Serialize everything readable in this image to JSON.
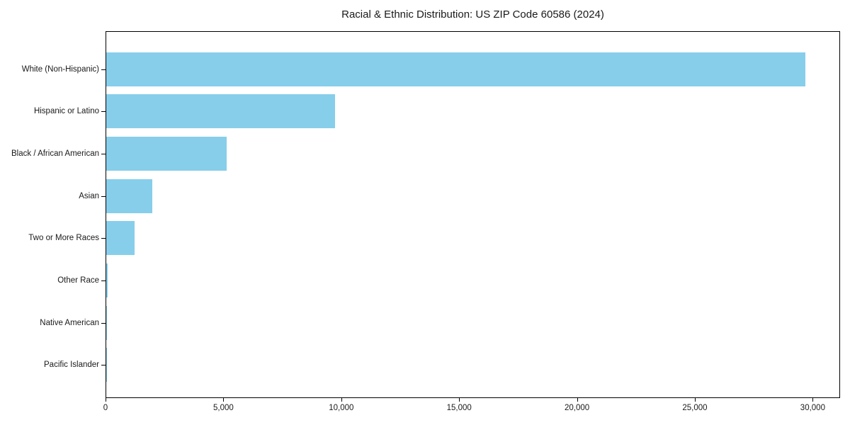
{
  "figure": {
    "background_color": "#ffffff",
    "axis_color": "#000000",
    "text_color": "#1a1a1a"
  },
  "chart_data": {
    "type": "bar",
    "orientation": "horizontal",
    "title": "Racial & Ethnic Distribution: US ZIP Code 60586 (2024)",
    "categories": [
      "White (Non-Hispanic)",
      "Hispanic or Latino",
      "Black / African American",
      "Asian",
      "Two or More Races",
      "Other Race",
      "Native American",
      "Pacific Islander"
    ],
    "values": [
      29700,
      9700,
      5100,
      1950,
      1200,
      50,
      25,
      10
    ],
    "bar_color": "#87CEEB",
    "xlabel": "",
    "ylabel": "",
    "xlim": [
      0,
      31130
    ],
    "x_ticks": [
      0,
      5000,
      10000,
      15000,
      20000,
      25000,
      30000
    ],
    "x_tick_labels": [
      "0",
      "5,000",
      "10,000",
      "15,000",
      "20,000",
      "25,000",
      "30,000"
    ],
    "grid": false,
    "legend": "none"
  }
}
